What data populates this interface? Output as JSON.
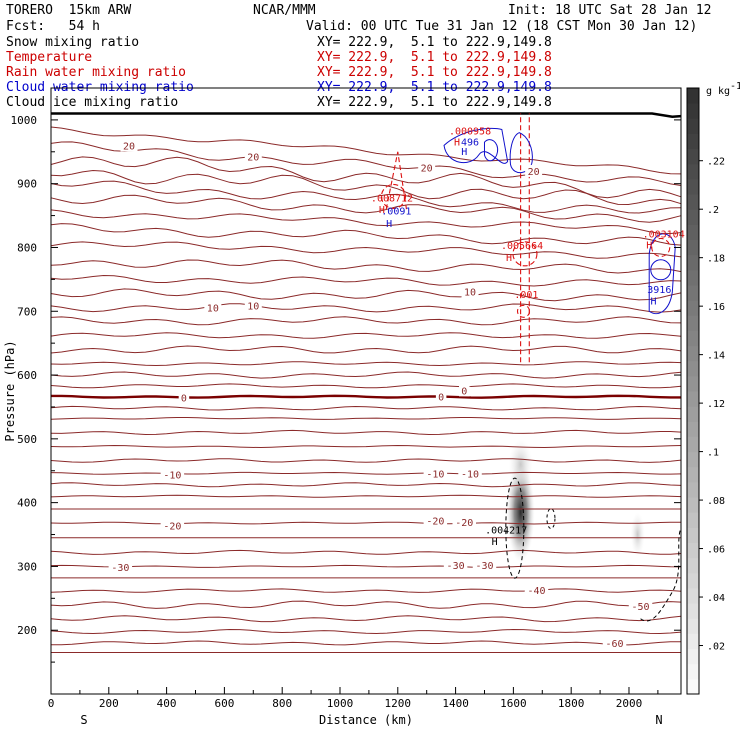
{
  "header": {
    "model": "TORERO  15km ARW",
    "org": "NCAR/MMM",
    "init": "Init: 18 UTC Sat 28 Jan 12",
    "fcst": "Fcst:   54 h",
    "valid": "Valid: 00 UTC Tue 31 Jan 12 (18 CST Mon 30 Jan 12)"
  },
  "legend": [
    {
      "name": "Snow mixing ratio",
      "xy": "XY= 222.9,  5.1 to 222.9,149.8",
      "color": "#000000"
    },
    {
      "name": "Temperature",
      "xy": "XY= 222.9,  5.1 to 222.9,149.8",
      "color": "#cc0000"
    },
    {
      "name": "Rain water mixing ratio",
      "xy": "XY= 222.9,  5.1 to 222.9,149.8",
      "color": "#cc0000"
    },
    {
      "name": "Cloud water mixing ratio",
      "xy": "XY= 222.9,  5.1 to 222.9,149.8",
      "color": "#0000cc"
    },
    {
      "name": "Cloud ice mixing ratio",
      "xy": "XY= 222.9,  5.1 to 222.9,149.8",
      "color": "#000000"
    }
  ],
  "colors": {
    "isotherm": "#8b2a2a",
    "zero_isotherm": "#7a0000",
    "rain": "#dd1111",
    "cloud": "#1111cc",
    "ice": "#000000",
    "ground": "#000000"
  },
  "chart_data": {
    "type": "cross-section",
    "xlabel": "Distance (km)",
    "ylabel": "Pressure (hPa)",
    "xlim": [
      0,
      2180
    ],
    "ylim": [
      1050,
      100
    ],
    "x_ticks": [
      0,
      200,
      400,
      600,
      800,
      1000,
      1200,
      1400,
      1600,
      1800,
      2000
    ],
    "y_ticks": [
      200,
      300,
      400,
      500,
      600,
      700,
      800,
      900,
      1000
    ],
    "endpoint_left": "S",
    "endpoint_right": "N",
    "colorbar": {
      "unit": "g kg",
      "unit_exp": "-1",
      "ticks": [
        ".02",
        ".04",
        ".06",
        ".08",
        ".1",
        ".12",
        ".14",
        ".16",
        ".18",
        ".2",
        ".22"
      ]
    },
    "isotherm_labels": [
      {
        "text": "-60",
        "x": 1950,
        "p": 180
      },
      {
        "text": "-50",
        "x": 2040,
        "p": 238
      },
      {
        "text": "-40",
        "x": 1680,
        "p": 263
      },
      {
        "text": "-30",
        "x": 240,
        "p": 299
      },
      {
        "text": "-30",
        "x": 1400,
        "p": 302
      },
      {
        "text": "-30",
        "x": 1500,
        "p": 302
      },
      {
        "text": "-20",
        "x": 420,
        "p": 364
      },
      {
        "text": "-20",
        "x": 1330,
        "p": 372
      },
      {
        "text": "-20",
        "x": 1430,
        "p": 370
      },
      {
        "text": "-10",
        "x": 420,
        "p": 444
      },
      {
        "text": "-10",
        "x": 1330,
        "p": 446
      },
      {
        "text": "-10",
        "x": 1450,
        "p": 446
      },
      {
        "text": "0",
        "x": 460,
        "p": 565
      },
      {
        "text": "0",
        "x": 1350,
        "p": 566
      },
      {
        "text": "0",
        "x": 1430,
        "p": 576
      },
      {
        "text": "10",
        "x": 560,
        "p": 706
      },
      {
        "text": "10",
        "x": 700,
        "p": 709
      },
      {
        "text": "10",
        "x": 1450,
        "p": 731
      },
      {
        "text": "20",
        "x": 270,
        "p": 960
      },
      {
        "text": "20",
        "x": 700,
        "p": 943
      },
      {
        "text": "20",
        "x": 1300,
        "p": 925
      },
      {
        "text": "20",
        "x": 1670,
        "p": 920
      }
    ],
    "extrema_labels": [
      {
        "text": "H",
        "x": 1535,
        "p": 340,
        "kind": "ice"
      },
      {
        "text": ".004217",
        "x": 1575,
        "p": 358,
        "kind": "ice"
      },
      {
        "text": ".001",
        "x": 1645,
        "p": 727,
        "kind": "rain"
      },
      {
        "text": "H",
        "x": 1585,
        "p": 785,
        "kind": "rain"
      },
      {
        "text": ".005664",
        "x": 1630,
        "p": 804,
        "kind": "rain"
      },
      {
        "text": "H",
        "x": 1170,
        "p": 838,
        "kind": "cloud"
      },
      {
        "text": "H",
        "x": 1145,
        "p": 860,
        "kind": "rain"
      },
      {
        "text": ".0091",
        "x": 1195,
        "p": 858,
        "kind": "cloud"
      },
      {
        "text": ".008712",
        "x": 1180,
        "p": 878,
        "kind": "rain"
      },
      {
        "text": "H",
        "x": 1430,
        "p": 951,
        "kind": "cloud"
      },
      {
        "text": "H",
        "x": 1405,
        "p": 966,
        "kind": "rain"
      },
      {
        "text": "496",
        "x": 1450,
        "p": 966,
        "kind": "cloud"
      },
      {
        "text": ".000958",
        "x": 1450,
        "p": 983,
        "kind": "rain"
      },
      {
        "text": "H",
        "x": 2085,
        "p": 717,
        "kind": "cloud"
      },
      {
        "text": "3916",
        "x": 2105,
        "p": 735,
        "kind": "cloud"
      },
      {
        "text": "H",
        "x": 2070,
        "p": 805,
        "kind": "rain"
      },
      {
        "text": ".003104",
        "x": 2120,
        "p": 822,
        "kind": "rain"
      }
    ]
  }
}
